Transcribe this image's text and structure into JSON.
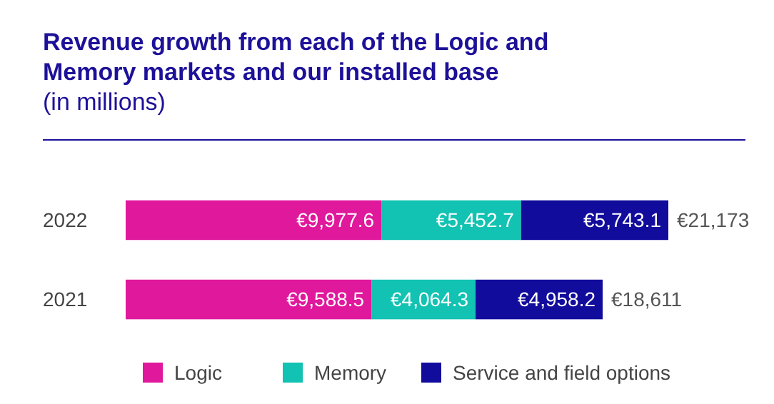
{
  "chart_data": {
    "type": "bar",
    "orientation": "horizontal",
    "stacked": true,
    "title": "Revenue growth from each of the Logic and Memory markets and our installed base",
    "subtitle": "(in millions)",
    "categories": [
      "2022",
      "2021"
    ],
    "series": [
      {
        "name": "Logic",
        "color": "#e0189c",
        "values": [
          9977.6,
          9588.5
        ],
        "value_labels": [
          "€9,977.6",
          "€9,588.5"
        ]
      },
      {
        "name": "Memory",
        "color": "#12c2b2",
        "values": [
          5452.7,
          4064.3
        ],
        "value_labels": [
          "€5,452.7",
          "€4,064.3"
        ]
      },
      {
        "name": "Service and field options",
        "color": "#120c9c",
        "values": [
          5743.1,
          4958.2
        ],
        "value_labels": [
          "€5,743.1",
          "€4,958.2"
        ]
      }
    ],
    "totals": [
      "€21,173",
      "€18,611"
    ],
    "legend": "bottom"
  }
}
